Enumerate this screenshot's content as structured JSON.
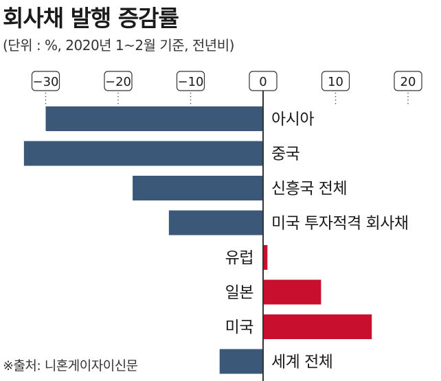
{
  "chart_data": {
    "type": "bar",
    "orientation": "horizontal",
    "title": "회사채 발행 증감률",
    "subtitle": "(단위 : %, 2020년 1~2월 기준, 전년비)",
    "source": "※출처: 니혼게이자이신문",
    "categories": [
      "아시아",
      "중국",
      "신흥국 전체",
      "미국 투자적격 회사채",
      "유럽",
      "일본",
      "미국",
      "세계 전체"
    ],
    "values": [
      -30,
      -33,
      -18,
      -13,
      0.6,
      8,
      15,
      -6
    ],
    "tick_values": [
      -30,
      -20,
      -10,
      0,
      10,
      20
    ],
    "tick_labels": [
      "−30",
      "−20",
      "−10",
      "0",
      "10",
      "20"
    ],
    "xlim": [
      -34,
      21
    ],
    "grid": false,
    "colors": {
      "negative": "#3b5878",
      "positive": "#c8102e",
      "axis": "#333333"
    }
  }
}
